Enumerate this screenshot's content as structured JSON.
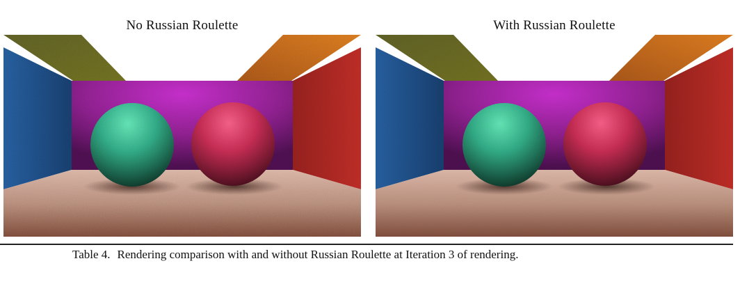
{
  "figure": {
    "panels": [
      {
        "title": "No Russian Roulette",
        "noise": "high"
      },
      {
        "title": "With Russian Roulette",
        "noise": "low"
      }
    ],
    "scene": {
      "left_wall_color": "#1f4f86",
      "right_wall_color": "#b82a24",
      "back_wall_color": "#8a1f8a",
      "ceiling_left_color": "#6b6a1f",
      "ceiling_right_color": "#c0651c",
      "floor_color": "#b58a78",
      "sphere_left_color": "#2fa57f",
      "sphere_right_color": "#c12a50"
    }
  },
  "caption": {
    "label": "Table 4.",
    "text": "Rendering comparison with and without Russian Roulette at Iteration 3 of rendering."
  }
}
